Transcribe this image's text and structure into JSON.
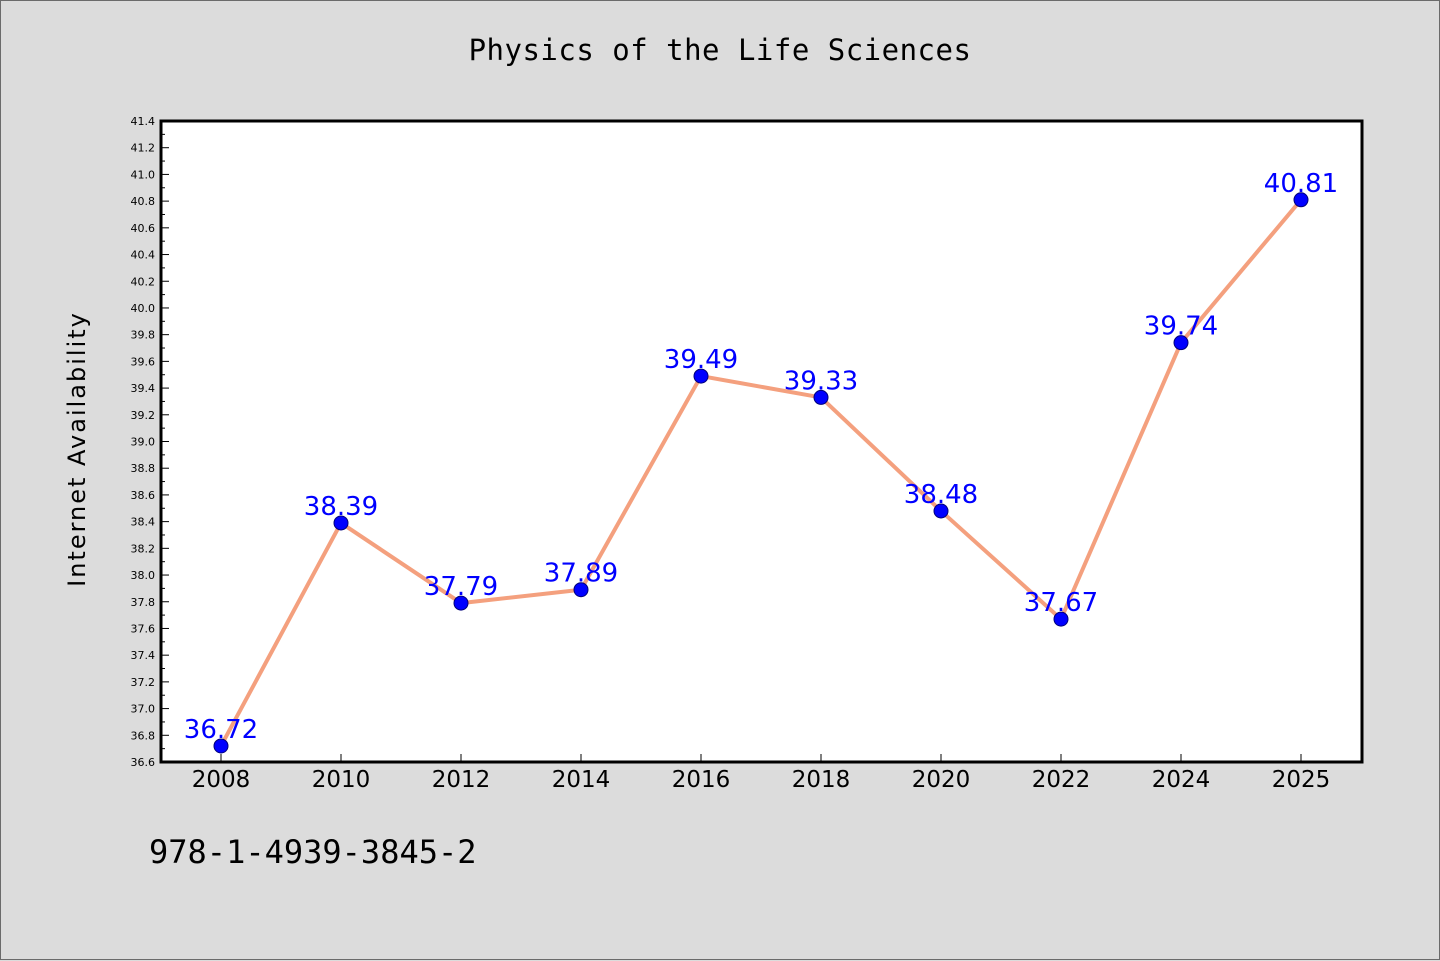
{
  "chart_data": {
    "type": "line",
    "title": "Physics of the Life Sciences",
    "xlabel": "",
    "ylabel": "Internet Availability",
    "categories": [
      "2008",
      "2010",
      "2012",
      "2014",
      "2016",
      "2018",
      "2020",
      "2022",
      "2024",
      "2025"
    ],
    "values": [
      36.72,
      38.39,
      37.79,
      37.89,
      39.49,
      39.33,
      38.48,
      37.67,
      39.74,
      40.81
    ],
    "data_labels": [
      "36.72",
      "38.39",
      "37.79",
      "37.89",
      "39.49",
      "39.33",
      "38.48",
      "37.67",
      "39.74",
      "40.81"
    ],
    "ylim": [
      36.6,
      41.4
    ],
    "y_ticks": [
      "36.6",
      "36.8",
      "37.0",
      "37.2",
      "37.4",
      "37.6",
      "37.8",
      "38.0",
      "38.2",
      "38.4",
      "38.6",
      "38.8",
      "39.0",
      "39.2",
      "39.4",
      "39.6",
      "39.8",
      "40.0",
      "40.2",
      "40.4",
      "40.6",
      "40.8",
      "41.0",
      "41.2",
      "41.4"
    ],
    "grid": false,
    "line_color": "#f4a07e",
    "marker_color": "#0000ff",
    "label_color": "#0000ff"
  },
  "footer": {
    "isbn": "978-1-4939-3845-2"
  }
}
